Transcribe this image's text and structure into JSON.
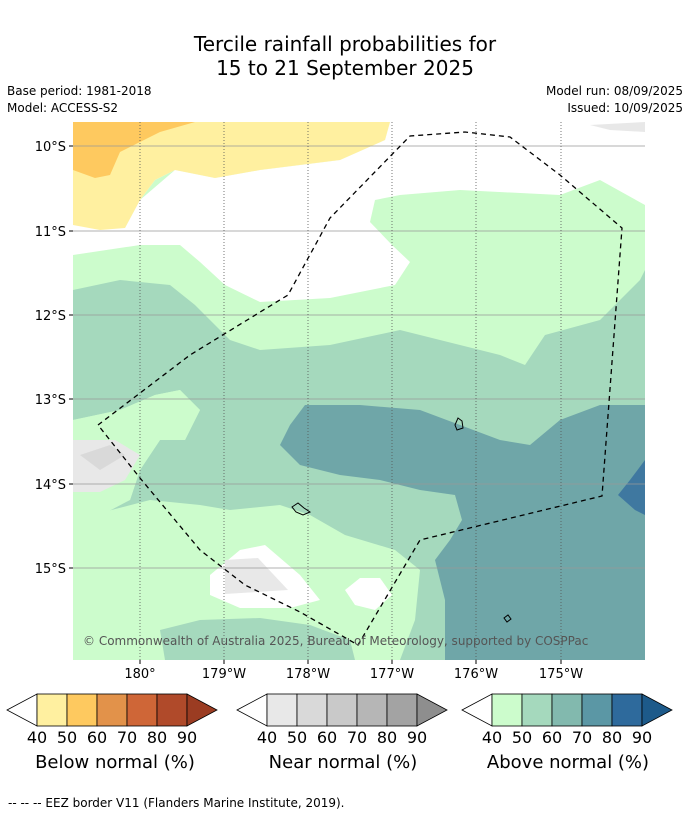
{
  "title": {
    "line1": "Tercile rainfall probabilities for",
    "line2": "15 to 21 September 2025"
  },
  "meta": {
    "base_period": "Base period: 1981-2018",
    "model": "Model: ACCESS-S2",
    "model_run": "Model run: 08/09/2025",
    "issued": "Issued: 10/09/2025"
  },
  "map": {
    "lat_labels": [
      "10°S",
      "11°S",
      "12°S",
      "13°S",
      "14°S",
      "15°S"
    ],
    "lon_labels": [
      "180°",
      "179°W",
      "178°W",
      "177°W",
      "176°W",
      "175°W"
    ],
    "copyright": "© Commonwealth of Australia 2025, Bureau of Meteorology, supported by COSPPac"
  },
  "colorbars": [
    {
      "name": "below",
      "label": "Below normal (%)",
      "ticks": [
        "40",
        "50",
        "60",
        "70",
        "80",
        "90"
      ],
      "colors": [
        "#fff0a0",
        "#fec95f",
        "#e2924a",
        "#cf6637",
        "#b04a2a",
        "#9b3c22"
      ]
    },
    {
      "name": "near",
      "label": "Near normal (%)",
      "ticks": [
        "40",
        "50",
        "60",
        "70",
        "80",
        "90"
      ],
      "colors": [
        "#e8e8e8",
        "#d9d9d9",
        "#c9c9c9",
        "#b6b6b6",
        "#a3a3a3",
        "#8e8e8e"
      ]
    },
    {
      "name": "above",
      "label": "Above normal (%)",
      "ticks": [
        "40",
        "50",
        "60",
        "70",
        "80",
        "90"
      ],
      "colors": [
        "#ccfccc",
        "#a5d9bd",
        "#82b9ae",
        "#5b97a5",
        "#2e6a9c",
        "#1d5a8a"
      ]
    }
  ],
  "footnote": "--  --  -- EEZ border V11 (Flanders Marine Institute, 2019)."
}
